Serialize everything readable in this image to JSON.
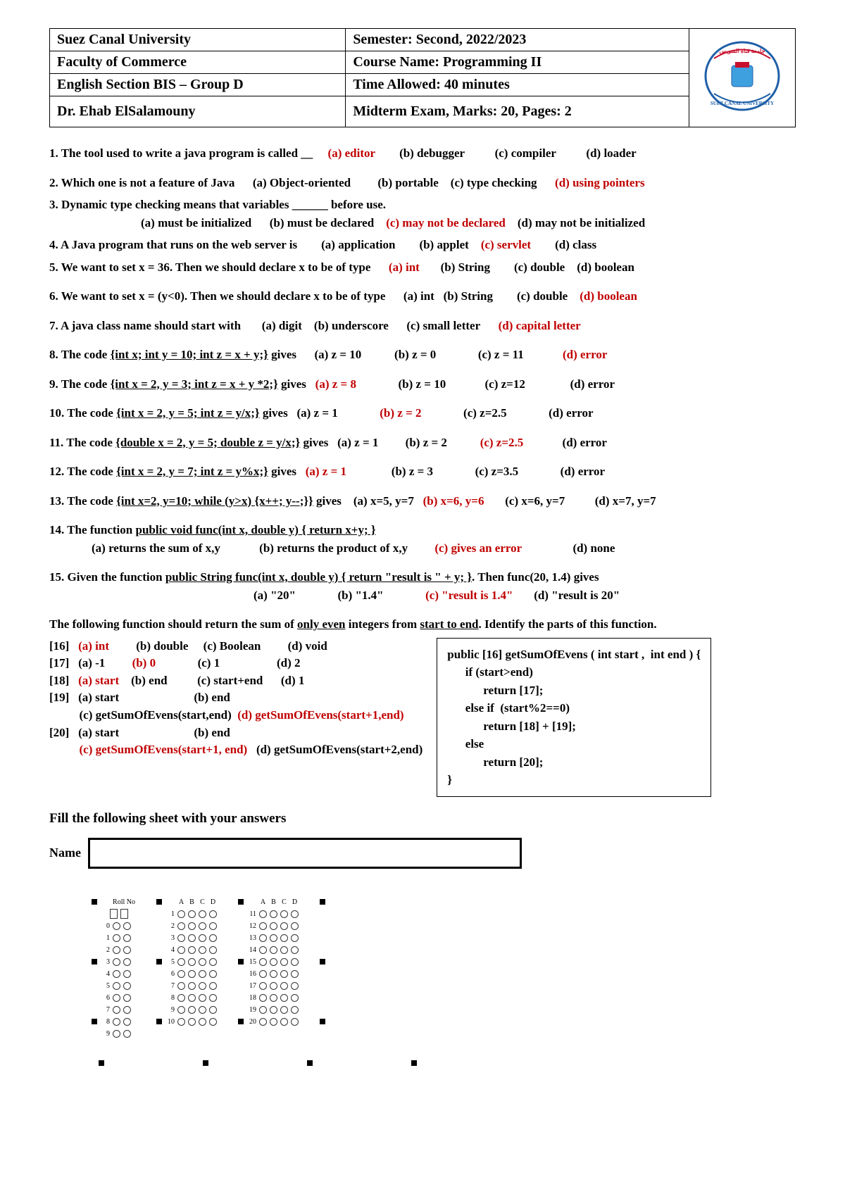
{
  "header": {
    "university": "Suez Canal University",
    "semester": "Semester: Second, 2022/2023",
    "faculty": "Faculty of Commerce",
    "course": "Course Name: Programming II",
    "section": "English Section BIS – Group D",
    "time": "Time Allowed: 40 minutes",
    "instructor": "Dr. Ehab ElSalamouny",
    "exam_info": "Midterm Exam, Marks: 20, Pages: 2"
  },
  "q1": {
    "stem": "1. The tool used to write a java program is called __",
    "a": "(a) editor",
    "b": "(b) debugger",
    "c": "(c) compiler",
    "d": "(d) loader"
  },
  "q2": {
    "stem": "2. Which one is not a feature of Java",
    "a": "(a) Object-oriented",
    "b": "(b) portable",
    "c": "(c) type checking",
    "d": "(d) using pointers"
  },
  "q3": {
    "stem": "3. Dynamic type checking means that variables ______ before use.",
    "a": "(a) must be initialized",
    "b": "(b) must be declared",
    "c": "(c) may not be declared",
    "d": "(d) may not be initialized"
  },
  "q4": {
    "stem": "4. A Java program that runs on the web server is",
    "a": "(a)  application",
    "b": "(b) applet",
    "c": "(c) servlet",
    "d": "(d) class"
  },
  "q5": {
    "stem": "5. We want to set x = 36. Then we should declare x to be of type",
    "a": "(a) int",
    "b": "(b) String",
    "c": "(c) double",
    "d": "(d) boolean"
  },
  "q6": {
    "stem": "6. We want to set x = (y<0). Then we should declare x to be of type",
    "a": "(a) int",
    "b": "(b) String",
    "c": "(c) double",
    "d": "(d) boolean"
  },
  "q7": {
    "stem": "7. A java class name should start with",
    "a": "(a) digit",
    "b": "(b) underscore",
    "c": "(c) small letter",
    "d": "(d) capital letter"
  },
  "q8": {
    "stem": "8. The code ",
    "code": "{int x;  int y = 10;  int z = x + y;}",
    "post": "  gives",
    "a": "(a) z = 10",
    "b": "(b) z = 0",
    "c": "(c) z = 11",
    "d": "(d) error"
  },
  "q9": {
    "stem": "9. The code ",
    "code": "{int x = 2, y = 3;  int z = x + y *2;}",
    "post": "  gives",
    "a": "(a) z = 8",
    "b": "(b) z = 10",
    "c": "(c) z=12",
    "d": "(d) error"
  },
  "q10": {
    "stem": "10. The code ",
    "code": "{int x = 2, y = 5;  int z = y/x;}",
    "post": "       gives",
    "a": "(a) z = 1",
    "b": "(b) z = 2",
    "c": "(c) z=2.5",
    "d": "(d) error"
  },
  "q11": {
    "stem": "11. The code ",
    "code": "{double x = 2, y = 5;  double z = y/x;}",
    "post": "  gives",
    "a": "(a) z = 1",
    "b": "(b) z = 2",
    "c": "(c) z=2.5",
    "d": "(d) error"
  },
  "q12": {
    "stem": "12. The code ",
    "code": "{int x = 2, y = 7;  int z = y%x;}",
    "post": "     gives",
    "a": "(a) z = 1",
    "b": "(b) z = 3",
    "c": "(c) z=3.5",
    "d": "(d) error"
  },
  "q13": {
    "stem": "13. The code ",
    "code": "{int x=2, y=10;  while (y>x) {x++; y--;}}",
    "post": " gives",
    "a": "(a) x=5, y=7",
    "b": "(b) x=6, y=6",
    "c": "(c) x=6, y=7",
    "d": "(d) x=7, y=7"
  },
  "q14": {
    "stem": "14. The function ",
    "code": "public void func(int x, double y) { return x+y; }",
    "a": "(a) returns the sum of x,y",
    "b": "(b) returns the product of x,y",
    "c": "(c) gives an error",
    "d": "(d) none"
  },
  "q15": {
    "stem": "15. Given the function ",
    "code": "public String func(int x, double y) { return \"result is \" + y; }",
    "post": ".  Then func(20, 1.4) gives",
    "a": "(a) \"20\"",
    "b": "(b) \"1.4\"",
    "c": "(c) \"result is 1.4\"",
    "d": "(d) \"result is 20\""
  },
  "blanks_intro": "The following function should return the sum of ",
  "blanks_intro_u1": "only even",
  "blanks_intro_mid": " integers from ",
  "blanks_intro_u2": "start to end",
  "blanks_intro_end": ". Identify the parts of this function.",
  "b16": {
    "n": "[16]",
    "a": "(a) int",
    "b": "(b) double",
    "c": "(c) Boolean",
    "d": "(d) void"
  },
  "b17": {
    "n": "[17]",
    "a": "(a) -1",
    "b": "(b) 0",
    "c": "(c) 1",
    "d": "(d) 2"
  },
  "b18": {
    "n": "[18]",
    "a": "(a) start",
    "b": "(b) end",
    "c": "(c) start+end",
    "d": "(d) 1"
  },
  "b19": {
    "n": "[19]",
    "a": "(a) start",
    "b": "(b) end",
    "c": "(c) getSumOfEvens(start,end)",
    "d": "(d) getSumOfEvens(start+1,end)"
  },
  "b20": {
    "n": "[20]",
    "a": "(a) start",
    "b": "(b) end",
    "c": "(c) getSumOfEvens(start+1, end)",
    "d": "(d) getSumOfEvens(start+2,end)"
  },
  "code_box": "public [16] getSumOfEvens ( int start ,  int end ) {\n      if (start>end)\n            return [17];\n      else if  (start%2==0)\n            return [18] + [19];\n      else\n            return [20];\n}",
  "fill_title": "Fill the following sheet with your answers",
  "name_label": "Name",
  "bubble": {
    "roll_label": "Roll No",
    "headers": [
      "A",
      "B",
      "C",
      "D"
    ],
    "col1_rows": [
      1,
      2,
      3,
      4,
      5,
      6,
      7,
      8,
      9,
      10
    ],
    "col2_rows": [
      11,
      12,
      13,
      14,
      15,
      16,
      17,
      18,
      19,
      20
    ],
    "roll_digits": [
      0,
      1,
      2,
      3,
      4,
      5,
      6,
      7,
      8,
      9
    ]
  },
  "colors": {
    "answer": "#c00000",
    "text": "#000000",
    "logo_ring": "#1f5fa8",
    "logo_red": "#c8102e",
    "logo_blue": "#3fa0e0"
  }
}
